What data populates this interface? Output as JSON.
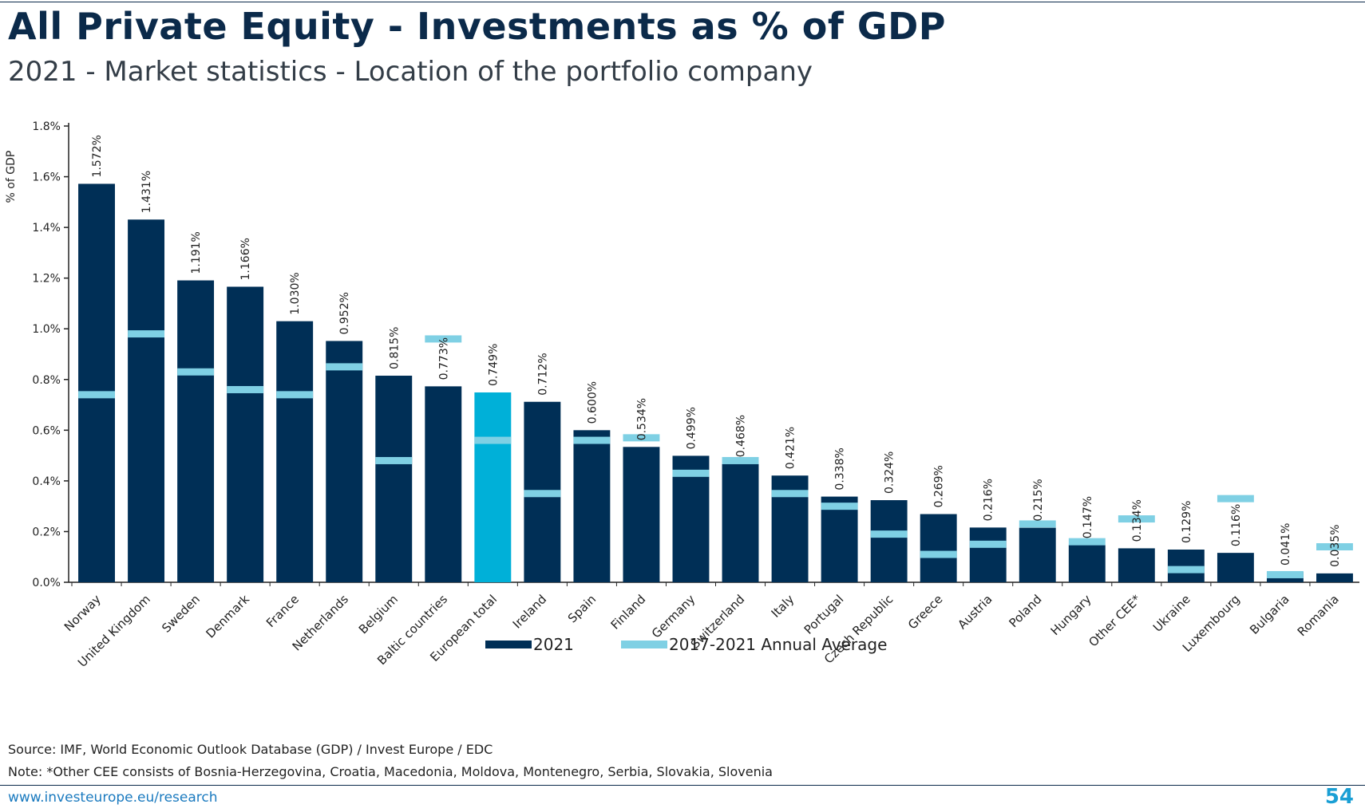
{
  "header": {
    "title": "All Private Equity - Investments as % of GDP",
    "subtitle": "2021 - Market statistics - Location of the portfolio company"
  },
  "footer": {
    "source": "Source: IMF, World Economic Outlook Database (GDP) / Invest Europe / EDC",
    "note": "Note: *Other CEE consists of Bosnia-Herzegovina, Croatia, Macedonia, Moldova, Montenegro, Serbia, Slovakia, Slovenia",
    "url": "www.investeurope.eu/research",
    "page_number": "54"
  },
  "colors": {
    "bar_2021": "#002f56",
    "bar_highlight": "#00b0d8",
    "avg_marker": "#7fd0e4",
    "axis": "#222222"
  },
  "chart_data": {
    "type": "bar",
    "ylabel": "% of GDP",
    "ylim": [
      0,
      1.8
    ],
    "yticks": [
      0.0,
      0.2,
      0.4,
      0.6,
      0.8,
      1.0,
      1.2,
      1.4,
      1.6,
      1.8
    ],
    "ytick_labels": [
      "0.0%",
      "0.2%",
      "0.4%",
      "0.6%",
      "0.8%",
      "1.0%",
      "1.2%",
      "1.4%",
      "1.6%",
      "1.8%"
    ],
    "highlight_category": "European total",
    "legend_position": "bottom",
    "categories": [
      "Norway",
      "United Kingdom",
      "Sweden",
      "Denmark",
      "France",
      "Netherlands",
      "Belgium",
      "Baltic countries",
      "European total",
      "Ireland",
      "Spain",
      "Finland",
      "Germany",
      "Switzerland",
      "Italy",
      "Portugal",
      "Czech Republic",
      "Greece",
      "Austria",
      "Poland",
      "Hungary",
      "Other CEE*",
      "Ukraine",
      "Luxembourg",
      "Bulgaria",
      "Romania"
    ],
    "series": [
      {
        "name": "2021",
        "style": "bar",
        "values": [
          1.572,
          1.431,
          1.191,
          1.166,
          1.03,
          0.952,
          0.815,
          0.773,
          0.749,
          0.712,
          0.6,
          0.534,
          0.499,
          0.468,
          0.421,
          0.338,
          0.324,
          0.269,
          0.216,
          0.215,
          0.147,
          0.134,
          0.129,
          0.116,
          0.041,
          0.035
        ],
        "labels": [
          "1.572%",
          "1.431%",
          "1.191%",
          "1.166%",
          "1.030%",
          "0.952%",
          "0.815%",
          "0.773%",
          "0.749%",
          "0.712%",
          "0.600%",
          "0.534%",
          "0.499%",
          "0.468%",
          "0.421%",
          "0.338%",
          "0.324%",
          "0.269%",
          "0.216%",
          "0.215%",
          "0.147%",
          "0.134%",
          "0.129%",
          "0.116%",
          "0.041%",
          "0.035%"
        ]
      },
      {
        "name": "2017-2021 Annual Average",
        "style": "marker",
        "values": [
          0.74,
          0.98,
          0.83,
          0.76,
          0.74,
          0.85,
          0.48,
          0.96,
          0.56,
          0.35,
          0.56,
          0.57,
          0.43,
          0.48,
          0.35,
          0.3,
          0.19,
          0.11,
          0.15,
          0.23,
          0.16,
          0.25,
          0.05,
          0.33,
          0.03,
          0.14
        ]
      }
    ]
  }
}
